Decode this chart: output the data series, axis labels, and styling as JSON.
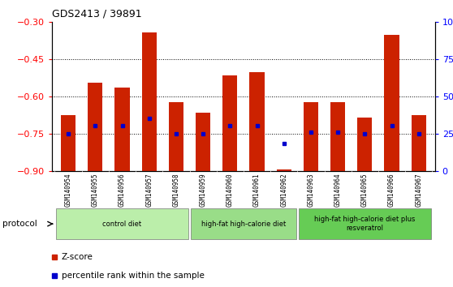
{
  "title": "GDS2413 / 39891",
  "samples": [
    "GSM140954",
    "GSM140955",
    "GSM140956",
    "GSM140957",
    "GSM140958",
    "GSM140959",
    "GSM140960",
    "GSM140961",
    "GSM140962",
    "GSM140963",
    "GSM140964",
    "GSM140965",
    "GSM140966",
    "GSM140967"
  ],
  "zscore": [
    -0.675,
    -0.545,
    -0.565,
    -0.345,
    -0.625,
    -0.665,
    -0.515,
    -0.505,
    -0.895,
    -0.625,
    -0.625,
    -0.685,
    -0.355,
    -0.675
  ],
  "percentile": [
    25,
    30,
    30,
    35,
    25,
    25,
    30,
    30,
    18,
    26,
    26,
    25,
    30,
    25
  ],
  "ymin": -0.9,
  "ymax": -0.3,
  "yticks_left": [
    -0.3,
    -0.45,
    -0.6,
    -0.75,
    -0.9
  ],
  "yticks_right": [
    0,
    25,
    50,
    75,
    100
  ],
  "grid_lines": [
    -0.45,
    -0.6,
    -0.75
  ],
  "bar_color": "#cc2200",
  "dot_color": "#0000cc",
  "protocol_groups": [
    {
      "label": "control diet",
      "start": 0,
      "end": 4,
      "color": "#bbeeaa"
    },
    {
      "label": "high-fat high-calorie diet",
      "start": 5,
      "end": 8,
      "color": "#99dd88"
    },
    {
      "label": "high-fat high-calorie diet plus\nresveratrol",
      "start": 9,
      "end": 13,
      "color": "#66cc55"
    }
  ],
  "legend_zscore": "Z-score",
  "legend_percentile": "percentile rank within the sample",
  "xlabel_protocol": "protocol"
}
